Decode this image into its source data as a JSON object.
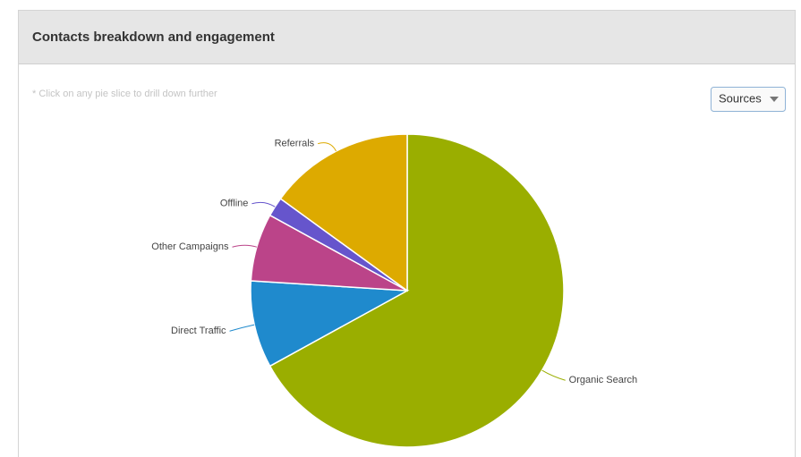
{
  "panel": {
    "title": "Contacts breakdown and engagement",
    "note": "* Click on any pie slice to drill down further",
    "dropdown": "Sources"
  },
  "chart_data": {
    "type": "pie",
    "categories": [
      "Organic Search",
      "Direct Traffic",
      "Other Campaigns",
      "Offline",
      "Referrals"
    ],
    "values": [
      67,
      9,
      7,
      2,
      15
    ],
    "colors": [
      "#9aae00",
      "#1f8acd",
      "#bb4489",
      "#6655cc",
      "#ddaa00"
    ]
  }
}
